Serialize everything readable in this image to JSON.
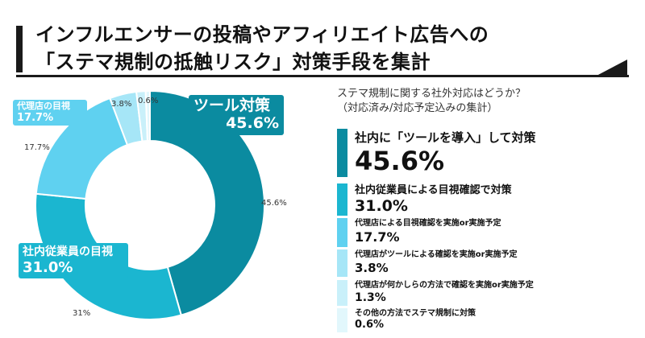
{
  "header": {
    "title_line1": "インフルエンサーの投稿やアフィリエイト広告への",
    "title_line2": "「ステマ規制の抵触リスク」対策手段を集計"
  },
  "question": {
    "line1": "ステマ規制に関する社外対応はどうか？",
    "line2": "（対応済み/対応予定込みの集計）"
  },
  "callouts": {
    "big_name": "ツール対策",
    "big_value": "45.6%",
    "mid_name": "社内従業員の目視",
    "mid_value": "31.0%",
    "small_name": "代理店の目視",
    "small_value": "17.7%"
  },
  "pie_labels": {
    "a": "45.6%",
    "b": "31%",
    "c": "17.7%",
    "d": "3.8%",
    "e": "0.6%"
  },
  "ranking": [
    {
      "label": "社内に「ツールを導入」して対策",
      "value": "45.6%"
    },
    {
      "label": "社内従業員による目視確認で対策",
      "value": "31.0%"
    },
    {
      "label": "代理店による目視確認を実施or実施予定",
      "value": "17.7%"
    },
    {
      "label": "代理店がツールによる確認を実施or実施予定",
      "value": "3.8%"
    },
    {
      "label": "代理店が何かしらの方法で確認を実施or実施予定",
      "value": "1.3%"
    },
    {
      "label": "その他の方法でステマ規制に対策",
      "value": "0.6%"
    }
  ],
  "chart_data": {
    "type": "pie",
    "categories": [
      "社内に「ツールを導入」して対策",
      "社内従業員による目視確認で対策",
      "代理店による目視確認を実施or実施予定",
      "代理店がツールによる確認を実施or実施予定",
      "代理店が何かしらの方法で確認を実施or実施予定",
      "その他の方法でステマ規制に対策"
    ],
    "values": [
      45.6,
      31.0,
      17.7,
      3.8,
      1.3,
      0.6
    ],
    "colors": [
      "#0b8ba0",
      "#1bb6d0",
      "#5fd1f0",
      "#a6e6f7",
      "#c9f0fa",
      "#e2f7fc"
    ],
    "title": "「ステマ規制の抵触リスク」対策手段を集計",
    "legend": "right"
  }
}
